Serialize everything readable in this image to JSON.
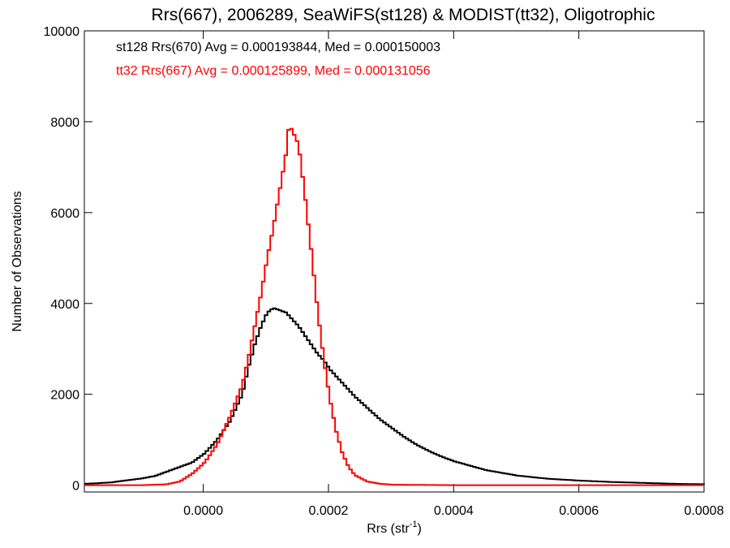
{
  "chart_data": {
    "type": "line",
    "title": "Rrs(667), 2006289, SeaWiFS(st128) & MODIST(tt32), Oligotrophic",
    "xlabel_main": "Rrs (str",
    "xlabel_sup": "-1",
    "xlabel_close": ")",
    "ylabel": "Number of Observations",
    "xlim": [
      -0.00019,
      0.0008
    ],
    "ylim": [
      -150,
      10000
    ],
    "x_ticks": [
      0.0,
      0.0002,
      0.0004,
      0.0006,
      0.0008
    ],
    "x_tick_labels": [
      "0.0000",
      "0.0002",
      "0.0004",
      "0.0006",
      "0.0008"
    ],
    "y_ticks": [
      0,
      2000,
      4000,
      6000,
      8000,
      10000
    ],
    "y_tick_labels": [
      "0",
      "2000",
      "4000",
      "6000",
      "8000",
      "10000"
    ],
    "grid": false,
    "annotations": [
      {
        "text": "st128 Rrs(670) Avg = 0.000193844, Med = 0.000150003",
        "color": "#000000"
      },
      {
        "text": "tt32 Rrs(667) Avg = 0.000125899, Med = 0.000131056",
        "color": "#ff0000"
      }
    ],
    "series": [
      {
        "color": "#000000",
        "x": [
          -0.00019,
          -0.00015,
          -0.0001,
          -8e-05,
          -6e-05,
          -4e-05,
          -2e-05,
          0.0,
          2e-05,
          4e-05,
          6e-05,
          7e-05,
          8e-05,
          9e-05,
          0.0001,
          0.00011,
          0.00012,
          0.00013,
          0.00014,
          0.00015,
          0.00016,
          0.00017,
          0.00018,
          0.00019,
          0.0002,
          0.00022,
          0.00024,
          0.00026,
          0.00028,
          0.0003,
          0.00032,
          0.00034,
          0.00036,
          0.00038,
          0.0004,
          0.00045,
          0.0005,
          0.00055,
          0.0006,
          0.00065,
          0.0007,
          0.00075,
          0.0008
        ],
        "y": [
          30,
          60,
          150,
          200,
          300,
          400,
          500,
          700,
          1000,
          1400,
          2000,
          2600,
          3100,
          3500,
          3800,
          3900,
          3850,
          3800,
          3650,
          3500,
          3300,
          3100,
          2900,
          2750,
          2550,
          2250,
          1950,
          1700,
          1450,
          1250,
          1050,
          880,
          740,
          620,
          520,
          330,
          210,
          140,
          100,
          70,
          50,
          30,
          20
        ]
      },
      {
        "color": "#ff0000",
        "x": [
          -0.00019,
          -0.0001,
          -6e-05,
          -4e-05,
          -2e-05,
          0.0,
          2e-05,
          4e-05,
          6e-05,
          7e-05,
          8e-05,
          9e-05,
          0.0001,
          0.00011,
          0.00012,
          0.00013,
          0.000135,
          0.00014,
          0.00015,
          0.00016,
          0.00017,
          0.00018,
          0.00019,
          0.0002,
          0.00021,
          0.00022,
          0.00023,
          0.00024,
          0.00026,
          0.00028,
          0.0003,
          0.0004,
          0.0006,
          0.0008
        ],
        "y": [
          0,
          0,
          20,
          80,
          250,
          500,
          900,
          1500,
          2200,
          2800,
          3500,
          4200,
          5000,
          5700,
          6500,
          7300,
          7950,
          7800,
          7500,
          6400,
          5200,
          3900,
          2800,
          1900,
          1200,
          700,
          400,
          220,
          80,
          30,
          10,
          0,
          0,
          0
        ]
      }
    ]
  }
}
